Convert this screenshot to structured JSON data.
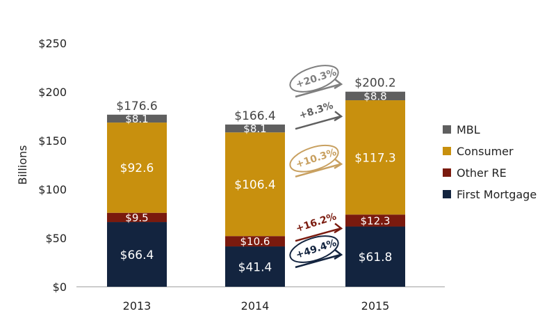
{
  "chart_data": {
    "type": "bar",
    "stacked": true,
    "title": "",
    "xlabel": "",
    "ylabel": "Billions",
    "ylim": [
      0,
      250
    ],
    "yticks": [
      0,
      50,
      100,
      150,
      200,
      250
    ],
    "ytick_labels": [
      "$0",
      "$50",
      "$100",
      "$150",
      "$200",
      "$250"
    ],
    "categories": [
      "2013",
      "2014",
      "2015"
    ],
    "series": [
      {
        "name": "First Mortgage",
        "color": "#13243f",
        "values": [
          66.4,
          41.4,
          61.8
        ],
        "labels": [
          "$66.4",
          "$41.4",
          "$61.8"
        ]
      },
      {
        "name": "Other RE",
        "color": "#7a1a0e",
        "values": [
          9.5,
          10.6,
          12.3
        ],
        "labels": [
          "$9.5",
          "$10.6",
          "$12.3"
        ]
      },
      {
        "name": "Consumer",
        "color": "#c8900e",
        "values": [
          92.6,
          106.4,
          117.3
        ],
        "labels": [
          "$92.6",
          "$106.4",
          "$117.3"
        ]
      },
      {
        "name": "MBL",
        "color": "#5f5f5f",
        "values": [
          8.1,
          8.1,
          8.8
        ],
        "labels": [
          "$8.1",
          "$8.1",
          "$8.8"
        ]
      }
    ],
    "totals": [
      "$176.6",
      "$166.4",
      "$200.2"
    ],
    "legend": {
      "placement": "right",
      "order": [
        "MBL",
        "Consumer",
        "Other RE",
        "First Mortgage"
      ]
    },
    "annotations": [
      {
        "text": "+20.3%",
        "series": "Total",
        "color": "#7f7f7f",
        "circled": true,
        "level": 205
      },
      {
        "text": "+8.3%",
        "series": "MBL",
        "color": "#5f5f5f",
        "circled": false,
        "level": 172
      },
      {
        "text": "+10.3%",
        "series": "Consumer",
        "color": "#c8a060",
        "circled": true,
        "level": 123
      },
      {
        "text": "+16.2%",
        "series": "Other RE",
        "color": "#7a1a0e",
        "circled": false,
        "level": 57
      },
      {
        "text": "+49.4%",
        "series": "First Mortgage",
        "color": "#13243f",
        "circled": true,
        "level": 30
      }
    ]
  }
}
